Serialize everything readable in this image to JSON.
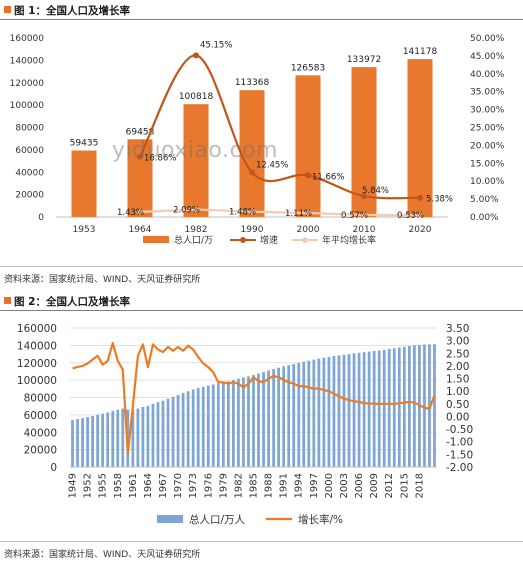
{
  "watermark": "yiduoxiao.com",
  "figure1": {
    "title": "图 1：全国人口及增长率",
    "source": "资料来源：国家统计局、WIND、天风证券研究所"
  },
  "figure2": {
    "title": "图 2：全国人口及增长率",
    "source": "资料来源：国家统计局、WIND、天风证券研究所"
  },
  "colors": {
    "bar1": "#e8782d",
    "line1": "#c0561a",
    "avg1": "#f4c9b5",
    "bar2": "#7ea6d4",
    "line2": "#ef7a24"
  },
  "chart_data": [
    {
      "type": "bar",
      "categories": [
        "1953",
        "1964",
        "1982",
        "1990",
        "2000",
        "2010",
        "2020"
      ],
      "ylim": [
        0,
        160000
      ],
      "y2lim": [
        0,
        0.5
      ],
      "yticks": [
        "0",
        "20000",
        "40000",
        "60000",
        "80000",
        "100000",
        "120000",
        "140000",
        "160000"
      ],
      "y2ticks": [
        "0.00%",
        "5.00%",
        "10.00%",
        "15.00%",
        "20.00%",
        "25.00%",
        "30.00%",
        "35.00%",
        "40.00%",
        "45.00%",
        "50.00%"
      ],
      "legend_position": "bottom",
      "series": [
        {
          "name": "总人口/万",
          "type": "bar",
          "axis": "left",
          "values": [
            59435,
            69458,
            100818,
            113368,
            126583,
            133972,
            141178
          ],
          "labels": [
            "59435",
            "69458",
            "100818",
            "113368",
            "126583",
            "133972",
            "141178"
          ]
        },
        {
          "name": "增速",
          "type": "line",
          "axis": "right",
          "values": [
            null,
            0.1686,
            0.4515,
            0.1245,
            0.1166,
            0.0584,
            0.0538
          ],
          "labels": [
            "",
            "16.86%",
            "45.15%",
            "12.45%",
            "11.66%",
            "5.84%",
            "5.38%"
          ]
        },
        {
          "name": "年平均增长率",
          "type": "line",
          "axis": "right",
          "values": [
            null,
            0.0143,
            0.0209,
            0.0148,
            0.0111,
            0.0057,
            0.0053
          ],
          "labels": [
            "",
            "1.43%",
            "2.09%",
            "1.48%",
            "1.11%",
            "0.57%",
            "0.53%"
          ]
        }
      ]
    },
    {
      "type": "bar",
      "x": [
        1949,
        1950,
        1951,
        1952,
        1953,
        1954,
        1955,
        1956,
        1957,
        1958,
        1959,
        1960,
        1961,
        1962,
        1963,
        1964,
        1965,
        1966,
        1967,
        1968,
        1969,
        1970,
        1971,
        1972,
        1973,
        1974,
        1975,
        1976,
        1977,
        1978,
        1979,
        1980,
        1981,
        1982,
        1983,
        1984,
        1985,
        1986,
        1987,
        1988,
        1989,
        1990,
        1991,
        1992,
        1993,
        1994,
        1995,
        1996,
        1997,
        1998,
        1999,
        2000,
        2001,
        2002,
        2003,
        2004,
        2005,
        2006,
        2007,
        2008,
        2009,
        2010,
        2011,
        2012,
        2013,
        2014,
        2015,
        2016,
        2017,
        2018,
        2019,
        2020,
        2021
      ],
      "xticks": [
        "1949",
        "1952",
        "1955",
        "1958",
        "1961",
        "1964",
        "1967",
        "1970",
        "1973",
        "1976",
        "1979",
        "1982",
        "1985",
        "1988",
        "1991",
        "1994",
        "1997",
        "2000",
        "2003",
        "2006",
        "2009",
        "2012",
        "2015",
        "2018"
      ],
      "ylim": [
        0,
        160000
      ],
      "y2lim": [
        -2,
        3.5
      ],
      "yticks": [
        "0",
        "20000",
        "40000",
        "60000",
        "80000",
        "100000",
        "120000",
        "140000",
        "160000"
      ],
      "y2ticks": [
        "-2.00",
        "-1.50",
        "-1.00",
        "-0.50",
        "0.00",
        "0.50",
        "1.00",
        "1.50",
        "2.00",
        "2.50",
        "3.00",
        "3.50"
      ],
      "legend_position": "bottom",
      "series": [
        {
          "name": "总人口/万人",
          "type": "bar",
          "axis": "left",
          "values": [
            54167,
            55196,
            56300,
            57482,
            58796,
            60266,
            61465,
            62828,
            64653,
            65994,
            67207,
            66207,
            65859,
            67296,
            69172,
            70499,
            72538,
            74542,
            76368,
            78534,
            80671,
            82992,
            85229,
            87177,
            89211,
            90859,
            92420,
            93717,
            94974,
            96259,
            97542,
            98705,
            100072,
            101654,
            103008,
            104357,
            105851,
            107507,
            109300,
            111026,
            112704,
            114333,
            115823,
            117171,
            118517,
            119850,
            121121,
            122389,
            123626,
            124761,
            125786,
            126743,
            127627,
            128453,
            129227,
            129988,
            130756,
            131448,
            132129,
            132802,
            133450,
            134091,
            134916,
            135922,
            136726,
            137646,
            138326,
            139232,
            140011,
            140541,
            141008,
            141212,
            141260
          ]
        },
        {
          "name": "增长率/%",
          "type": "line",
          "axis": "right",
          "values": [
            1.9,
            1.96,
            2.0,
            2.1,
            2.25,
            2.4,
            2.05,
            2.2,
            2.9,
            2.2,
            1.85,
            -1.46,
            0.4,
            2.4,
            2.85,
            1.95,
            2.85,
            2.65,
            2.55,
            2.75,
            2.6,
            2.75,
            2.6,
            2.8,
            2.65,
            2.35,
            2.1,
            1.95,
            1.75,
            1.35,
            1.35,
            1.3,
            1.35,
            1.3,
            1.15,
            1.3,
            1.55,
            1.4,
            1.35,
            1.5,
            1.6,
            1.55,
            1.45,
            1.35,
            1.3,
            1.2,
            1.2,
            1.15,
            1.1,
            1.1,
            1.05,
            1.0,
            0.9,
            0.8,
            0.7,
            0.65,
            0.6,
            0.58,
            0.52,
            0.52,
            0.5,
            0.5,
            0.5,
            0.5,
            0.5,
            0.52,
            0.55,
            0.58,
            0.55,
            0.45,
            0.35,
            0.3,
            0.85
          ]
        }
      ]
    }
  ]
}
